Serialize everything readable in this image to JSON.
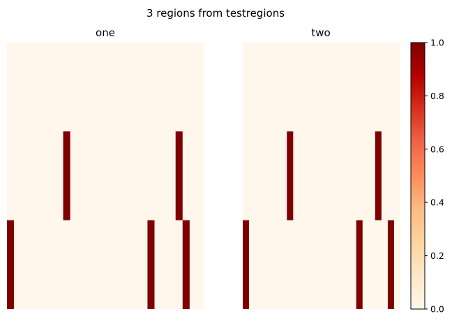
{
  "figure": {
    "suptitle": "3 regions from testregions"
  },
  "chart_data": {
    "type": "heatmap",
    "colormap": "OrRd",
    "color_low": "#fff7ec",
    "color_high": "#7f0000",
    "value_range": [
      0,
      1
    ],
    "panels": [
      {
        "title": "one",
        "rows": 3,
        "cols": 28,
        "cells": [
          {
            "row": 1,
            "col": 8,
            "value": 1
          },
          {
            "row": 1,
            "col": 24,
            "value": 1
          },
          {
            "row": 2,
            "col": 0,
            "value": 1
          },
          {
            "row": 2,
            "col": 20,
            "value": 1
          },
          {
            "row": 2,
            "col": 25,
            "value": 1
          }
        ]
      },
      {
        "title": "two",
        "rows": 3,
        "cols": 25,
        "cells": [
          {
            "row": 1,
            "col": 7,
            "value": 1
          },
          {
            "row": 1,
            "col": 21,
            "value": 1
          },
          {
            "row": 2,
            "col": 0,
            "value": 1
          },
          {
            "row": 2,
            "col": 18,
            "value": 1
          },
          {
            "row": 2,
            "col": 23,
            "value": 1
          }
        ]
      }
    ],
    "colorbar": {
      "ticks": [
        0.0,
        0.2,
        0.4,
        0.6,
        0.8,
        1.0
      ],
      "tick_labels": [
        "0.0",
        "0.2",
        "0.4",
        "0.6",
        "0.8",
        "1.0"
      ]
    }
  }
}
